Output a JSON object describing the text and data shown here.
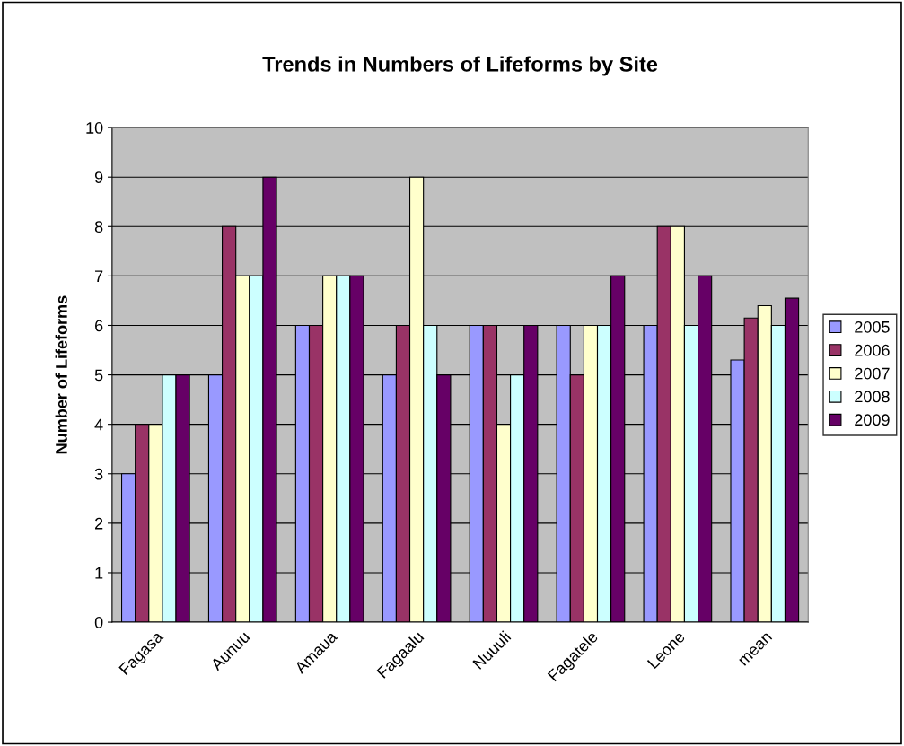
{
  "chart_data": {
    "type": "bar",
    "title": "Trends in Numbers of Lifeforms by Site",
    "ylabel": "Number of Lifeforms",
    "categories": [
      "Fagasa",
      "Aunuu",
      "Amaua",
      "Fagaalu",
      "Nuuuli",
      "Fagatele",
      "Leone",
      "mean"
    ],
    "series": [
      {
        "name": "2005",
        "color": "#9999ff",
        "values": [
          3,
          5,
          6,
          5,
          6,
          6,
          6,
          5.3
        ]
      },
      {
        "name": "2006",
        "color": "#993366",
        "values": [
          4,
          8,
          6,
          6,
          6,
          5,
          8,
          6.15
        ]
      },
      {
        "name": "2007",
        "color": "#ffffcc",
        "values": [
          4,
          7,
          7,
          9,
          4,
          6,
          8,
          6.4
        ]
      },
      {
        "name": "2008",
        "color": "#ccffff",
        "values": [
          5,
          7,
          7,
          6,
          5,
          6,
          6,
          6
        ]
      },
      {
        "name": "2009",
        "color": "#660066",
        "values": [
          5,
          9,
          7,
          5,
          6,
          7,
          7,
          6.55
        ]
      }
    ],
    "ylim": [
      0,
      10
    ],
    "yticks": [
      0,
      1,
      2,
      3,
      4,
      5,
      6,
      7,
      8,
      9,
      10
    ],
    "grid": "y",
    "legend": "right"
  }
}
